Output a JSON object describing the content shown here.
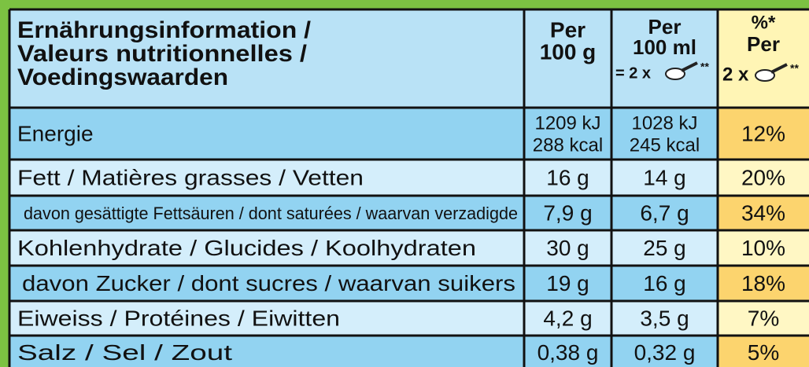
{
  "header": {
    "title_lines": [
      "Ernährungsinformation /",
      "Valeurs nutritionnelles /",
      "Voedingswaarden"
    ],
    "per_100g": [
      "Per",
      "100 g"
    ],
    "per_100ml": [
      "Per",
      "100 ml",
      "= 2 x",
      "**"
    ],
    "percent": [
      "%*",
      "Per",
      "2 x",
      "**"
    ]
  },
  "rows": [
    {
      "label": "Energie",
      "per_100g": [
        "1209 kJ",
        "288 kcal"
      ],
      "per_100ml": [
        "1028 kJ",
        "245 kcal"
      ],
      "percent": "12%"
    },
    {
      "label": "Fett / Matières grasses / Vetten",
      "per_100g": [
        "16 g"
      ],
      "per_100ml": [
        "14 g"
      ],
      "percent": "20%"
    },
    {
      "label": "davon gesättigte Fettsäuren / dont saturées / waarvan verzadigde",
      "per_100g": [
        "7,9 g"
      ],
      "per_100ml": [
        "6,7 g"
      ],
      "percent": "34%"
    },
    {
      "label": "Kohlenhydrate / Glucides / Koolhydraten",
      "per_100g": [
        "30 g"
      ],
      "per_100ml": [
        "25 g"
      ],
      "percent": "10%"
    },
    {
      "label": "davon Zucker / dont sucres / waarvan suikers",
      "per_100g": [
        "19 g"
      ],
      "per_100ml": [
        "16 g"
      ],
      "percent": "18%"
    },
    {
      "label": "Eiweiss / Protéines / Eiwitten",
      "per_100g": [
        "4,2 g"
      ],
      "per_100ml": [
        "3,5 g"
      ],
      "percent": "7%"
    },
    {
      "label": "Salz / Sel / Zout",
      "per_100g": [
        "0,38 g"
      ],
      "per_100ml": [
        "0,32 g"
      ],
      "percent": "5%"
    }
  ]
}
